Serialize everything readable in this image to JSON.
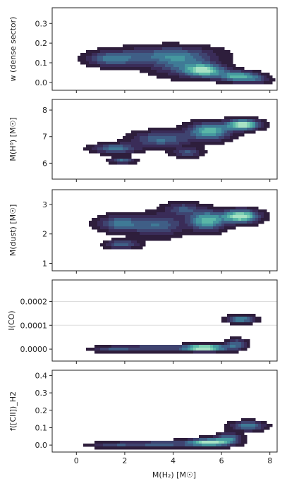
{
  "figure": {
    "xlabel": "M(H₂) [M☉]"
  },
  "chart_data": [
    {
      "type": "kde",
      "ylabel": "w (dense sector)",
      "ylim": [
        -0.04,
        0.38
      ],
      "xlim": [
        -1,
        8.3
      ],
      "xticks": [
        0,
        2,
        4,
        6,
        8
      ],
      "yticks": [
        0.0,
        0.1,
        0.2,
        0.3
      ],
      "ytick_labels": [
        "0.0",
        "0.1",
        "0.2",
        "0.3"
      ],
      "ygrid": [],
      "density_clusters": [
        {
          "x": 1.5,
          "y": 0.12,
          "sx": 0.7,
          "sy": 0.025,
          "w": 0.55
        },
        {
          "x": 3.8,
          "y": 0.14,
          "sx": 1.3,
          "sy": 0.03,
          "w": 0.45
        },
        {
          "x": 5.3,
          "y": 0.06,
          "sx": 0.55,
          "sy": 0.022,
          "w": 0.9
        },
        {
          "x": 6.7,
          "y": 0.03,
          "sx": 0.55,
          "sy": 0.018,
          "w": 0.8
        },
        {
          "x": 4.3,
          "y": 0.09,
          "sx": 0.9,
          "sy": 0.04,
          "w": 0.4
        },
        {
          "x": 7.5,
          "y": 0.015,
          "sx": 0.35,
          "sy": 0.015,
          "w": 0.3
        }
      ]
    },
    {
      "type": "kde",
      "ylabel": "M(H⁰) [M☉]",
      "ylim": [
        5.4,
        8.4
      ],
      "xlim": [
        -1,
        8.3
      ],
      "xticks": [
        0,
        2,
        4,
        6,
        8
      ],
      "yticks": [
        6,
        7,
        8
      ],
      "ytick_labels": [
        "6",
        "7",
        "8"
      ],
      "ygrid": [],
      "density_clusters": [
        {
          "x": 1.6,
          "y": 6.55,
          "sx": 0.6,
          "sy": 0.12,
          "w": 0.5
        },
        {
          "x": 1.9,
          "y": 6.1,
          "sx": 0.35,
          "sy": 0.07,
          "w": 0.45
        },
        {
          "x": 3.5,
          "y": 6.9,
          "sx": 0.8,
          "sy": 0.2,
          "w": 0.45
        },
        {
          "x": 5.5,
          "y": 7.2,
          "sx": 0.6,
          "sy": 0.22,
          "w": 0.7
        },
        {
          "x": 6.9,
          "y": 7.45,
          "sx": 0.45,
          "sy": 0.13,
          "w": 0.95
        },
        {
          "x": 4.6,
          "y": 6.4,
          "sx": 0.4,
          "sy": 0.12,
          "w": 0.35
        }
      ]
    },
    {
      "type": "kde",
      "ylabel": "M(dust) [M☉]",
      "ylim": [
        0.75,
        3.5
      ],
      "xlim": [
        -1,
        8.3
      ],
      "xticks": [
        0,
        2,
        4,
        6,
        8
      ],
      "yticks": [
        1,
        2,
        3
      ],
      "ytick_labels": [
        "1",
        "2",
        "3"
      ],
      "ygrid": [],
      "density_clusters": [
        {
          "x": 1.8,
          "y": 2.35,
          "sx": 0.6,
          "sy": 0.18,
          "w": 0.5
        },
        {
          "x": 1.9,
          "y": 1.65,
          "sx": 0.45,
          "sy": 0.1,
          "w": 0.45
        },
        {
          "x": 3.4,
          "y": 2.3,
          "sx": 0.7,
          "sy": 0.25,
          "w": 0.45
        },
        {
          "x": 5.4,
          "y": 2.45,
          "sx": 0.5,
          "sy": 0.22,
          "w": 0.75
        },
        {
          "x": 6.8,
          "y": 2.6,
          "sx": 0.5,
          "sy": 0.15,
          "w": 0.95
        },
        {
          "x": 4.4,
          "y": 2.85,
          "sx": 0.5,
          "sy": 0.15,
          "w": 0.35
        }
      ]
    },
    {
      "type": "kde",
      "ylabel": "I(CO)",
      "ylim": [
        -5e-05,
        0.00029
      ],
      "xlim": [
        -1,
        8.3
      ],
      "xticks": [
        0,
        2,
        4,
        6,
        8
      ],
      "yticks": [
        0.0,
        0.0001,
        0.0002
      ],
      "ytick_labels": [
        "0.0000",
        "0.0001",
        "0.0002"
      ],
      "ygrid": [
        0.0001,
        0.0002
      ],
      "density_clusters": [
        {
          "x": 1.5,
          "y": 0.0,
          "sx": 0.6,
          "sy": 8e-06,
          "w": 0.3
        },
        {
          "x": 3.2,
          "y": 5e-06,
          "sx": 0.9,
          "sy": 9e-06,
          "w": 0.35
        },
        {
          "x": 5.3,
          "y": 5e-06,
          "sx": 0.6,
          "sy": 9e-06,
          "w": 0.95
        },
        {
          "x": 6.6,
          "y": 2e-05,
          "sx": 0.3,
          "sy": 1.5e-05,
          "w": 0.4
        },
        {
          "x": 6.8,
          "y": 0.000125,
          "sx": 0.4,
          "sy": 1e-05,
          "w": 0.55
        }
      ]
    },
    {
      "type": "kde",
      "ylabel": "f([CII])_H2",
      "ylim": [
        -0.04,
        0.43
      ],
      "xlim": [
        -1,
        8.3
      ],
      "xticks": [
        0,
        2,
        4,
        6,
        8
      ],
      "yticks": [
        0.0,
        0.1,
        0.2,
        0.3,
        0.4
      ],
      "ytick_labels": [
        "0.0",
        "0.1",
        "0.2",
        "0.3",
        "0.4"
      ],
      "ygrid": [],
      "density_clusters": [
        {
          "x": 1.6,
          "y": 0.0,
          "sx": 0.7,
          "sy": 0.012,
          "w": 0.3
        },
        {
          "x": 3.5,
          "y": 0.005,
          "sx": 0.9,
          "sy": 0.013,
          "w": 0.4
        },
        {
          "x": 5.5,
          "y": 0.015,
          "sx": 0.6,
          "sy": 0.015,
          "w": 0.9
        },
        {
          "x": 6.3,
          "y": 0.04,
          "sx": 0.35,
          "sy": 0.02,
          "w": 0.45
        },
        {
          "x": 7.1,
          "y": 0.11,
          "sx": 0.45,
          "sy": 0.018,
          "w": 0.55
        }
      ]
    }
  ],
  "colors": {
    "ramp": [
      "#2e1e3c",
      "#3a2c58",
      "#3f4370",
      "#3f5e86",
      "#3f7a96",
      "#45989f",
      "#5ab7a7",
      "#80d0b3",
      "#a8e2c4"
    ],
    "axis": "#222222",
    "grid": "#dddddd"
  }
}
